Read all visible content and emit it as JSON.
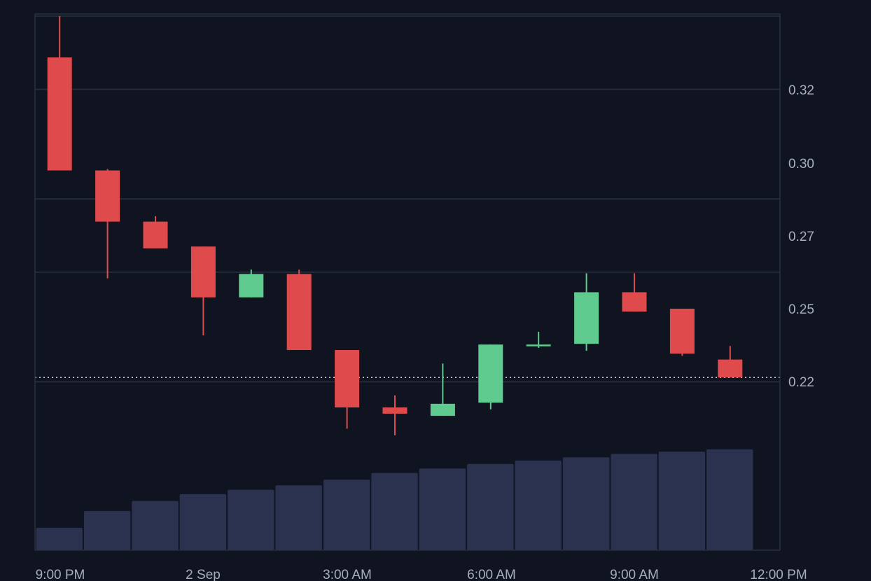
{
  "chart_data": {
    "type": "candlestick",
    "x_ticks": [
      "9:00 PM",
      "2 Sep",
      "3:00 AM",
      "6:00 AM",
      "9:00 AM",
      "12:00 PM"
    ],
    "y_ticks": [
      "0.32",
      "0.30",
      "0.27",
      "0.25",
      "0.22"
    ],
    "ylim": [
      0.2,
      0.34
    ],
    "grid": true,
    "current_price": 0.2212,
    "colors": {
      "up": "#5fcb8e",
      "down": "#df4b4d",
      "volume": "#2a324f",
      "background": "#0f1420",
      "grid": "#2a303d",
      "axis_text": "#a9aebb"
    },
    "candles": [
      {
        "time": "9:00 PM",
        "open": 0.3087,
        "high": 0.32,
        "low": 0.2778,
        "close": 0.2778
      },
      {
        "time": "10:00 PM",
        "open": 0.2778,
        "high": 0.2782,
        "low": 0.2483,
        "close": 0.2638
      },
      {
        "time": "11:00 PM",
        "open": 0.2638,
        "high": 0.2653,
        "low": 0.2565,
        "close": 0.2565
      },
      {
        "time": "2 Sep",
        "open": 0.257,
        "high": 0.257,
        "low": 0.2327,
        "close": 0.2431
      },
      {
        "time": "1:00 AM",
        "open": 0.2431,
        "high": 0.2507,
        "low": 0.2431,
        "close": 0.2495
      },
      {
        "time": "2:00 AM",
        "open": 0.2495,
        "high": 0.2507,
        "low": 0.2287,
        "close": 0.2287
      },
      {
        "time": "3:00 AM",
        "open": 0.2287,
        "high": 0.2287,
        "low": 0.2072,
        "close": 0.213
      },
      {
        "time": "4:00 AM",
        "open": 0.213,
        "high": 0.2163,
        "low": 0.2054,
        "close": 0.2113
      },
      {
        "time": "5:00 AM",
        "open": 0.2107,
        "high": 0.225,
        "low": 0.2107,
        "close": 0.214
      },
      {
        "time": "6:00 AM",
        "open": 0.2143,
        "high": 0.2302,
        "low": 0.2125,
        "close": 0.2302
      },
      {
        "time": "7:00 AM",
        "open": 0.23,
        "high": 0.2337,
        "low": 0.2293,
        "close": 0.2302
      },
      {
        "time": "8:00 AM",
        "open": 0.2304,
        "high": 0.2497,
        "low": 0.2285,
        "close": 0.2445
      },
      {
        "time": "9:00 AM",
        "open": 0.2445,
        "high": 0.2497,
        "low": 0.2392,
        "close": 0.2392
      },
      {
        "time": "10:00 AM",
        "open": 0.24,
        "high": 0.24,
        "low": 0.2271,
        "close": 0.2277
      },
      {
        "time": "11:00 AM",
        "open": 0.2261,
        "high": 0.2298,
        "low": 0.2212,
        "close": 0.2212
      }
    ],
    "volume": [
      0.2,
      0.35,
      0.44,
      0.5,
      0.54,
      0.58,
      0.63,
      0.69,
      0.73,
      0.77,
      0.8,
      0.83,
      0.86,
      0.88,
      0.9
    ]
  }
}
